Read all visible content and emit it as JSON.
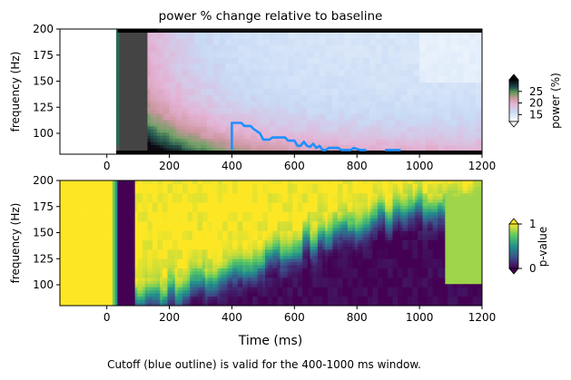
{
  "chart_data": [
    {
      "type": "heatmap",
      "title": "power % change relative to baseline",
      "xlabel": "",
      "ylabel": "frequency (Hz)",
      "xlim": [
        -150,
        1200
      ],
      "ylim": [
        80,
        200
      ],
      "xticks": [
        "0",
        "200",
        "400",
        "600",
        "800",
        "1000",
        "1200"
      ],
      "yticks": [
        "100",
        "125",
        "150",
        "175",
        "200"
      ],
      "colorbar": {
        "label": "power (%)",
        "ticks": [
          "15",
          "20",
          "25"
        ],
        "range": [
          12,
          30
        ],
        "extend": "both",
        "colormap": "cubehelix-like (light blue → pink → green → black)"
      },
      "blank_region_ms": [
        -150,
        30
      ],
      "outline": {
        "color": "#1e90ff",
        "points": [
          [
            400,
            84
          ],
          [
            400,
            110
          ],
          [
            430,
            110
          ],
          [
            440,
            107
          ],
          [
            460,
            107
          ],
          [
            470,
            104
          ],
          [
            490,
            100
          ],
          [
            500,
            94
          ],
          [
            520,
            94
          ],
          [
            530,
            96
          ],
          [
            570,
            96
          ],
          [
            580,
            93
          ],
          [
            600,
            93
          ],
          [
            610,
            88
          ],
          [
            620,
            88
          ],
          [
            630,
            92
          ],
          [
            640,
            88
          ],
          [
            650,
            87
          ],
          [
            660,
            90
          ],
          [
            670,
            86
          ],
          [
            680,
            88
          ],
          [
            690,
            84
          ],
          [
            700,
            84
          ],
          [
            710,
            86
          ],
          [
            740,
            86
          ],
          [
            750,
            84
          ],
          [
            780,
            84
          ],
          [
            790,
            86
          ],
          [
            800,
            85
          ],
          [
            810,
            84
          ],
          [
            830,
            84
          ]
        ],
        "extra_segment": [
          [
            890,
            84
          ],
          [
            940,
            84
          ]
        ]
      }
    },
    {
      "type": "heatmap",
      "title": "",
      "xlabel": "Time (ms)",
      "ylabel": "frequency (Hz)",
      "xlim": [
        -150,
        1200
      ],
      "ylim": [
        80,
        200
      ],
      "xticks": [
        "0",
        "200",
        "400",
        "600",
        "800",
        "1000",
        "1200"
      ],
      "yticks": [
        "100",
        "125",
        "150",
        "175",
        "200"
      ],
      "colorbar": {
        "label": "p-value",
        "ticks": [
          "0",
          "1"
        ],
        "range": [
          0,
          1
        ],
        "extend": "both",
        "colormap": "viridis"
      }
    }
  ],
  "caption": "Cutoff (blue outline) is valid for the 400-1000 ms window.",
  "colors": {
    "outline": "#1e90ff",
    "dark_block": "#444444"
  }
}
